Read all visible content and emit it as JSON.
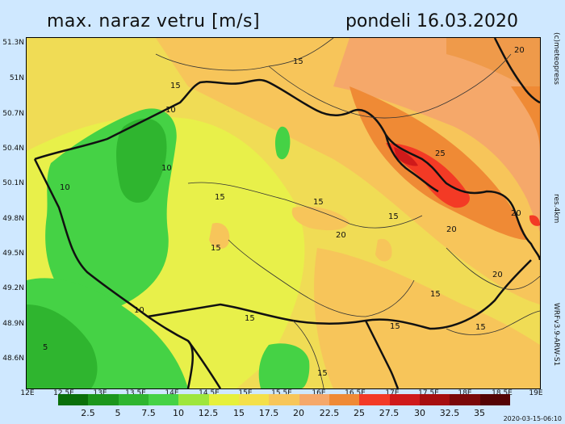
{
  "header": {
    "title": "max. naraz vetru [m/s]",
    "date": "pondeli 16.03.2020"
  },
  "map": {
    "lat_labels": [
      "51.3N",
      "51N",
      "50.7N",
      "50.4N",
      "50.1N",
      "49.8N",
      "49.5N",
      "49.2N",
      "48.9N",
      "48.6N"
    ],
    "lon_labels": [
      "12E",
      "12.5E",
      "13E",
      "13.5E",
      "14E",
      "14.5E",
      "15E",
      "15.5E",
      "16E",
      "16.5E",
      "17E",
      "17.5E",
      "18E",
      "18.5E",
      "19E"
    ],
    "contour_labels": [
      "15",
      "15",
      "10",
      "10",
      "10",
      "15",
      "15",
      "15",
      "15",
      "20",
      "20",
      "25",
      "20",
      "15",
      "15",
      "10",
      "15",
      "15",
      "15",
      "5",
      "20",
      "20"
    ]
  },
  "side": {
    "copyright": "(c)meteopress",
    "resolution": "res.4km",
    "model": "WRFv3.9-ARW-S1"
  },
  "legend": {
    "colors": [
      "#0a6f0a",
      "#1c961c",
      "#2fb52f",
      "#45d245",
      "#9ee63c",
      "#e6f03c",
      "#f4e04a",
      "#f7c65a",
      "#f5a86a",
      "#ef8a35",
      "#f33a25",
      "#cf1a1a",
      "#a60f0f",
      "#7a0808",
      "#540404"
    ],
    "ticks": [
      "2.5",
      "5",
      "7.5",
      "10",
      "12.5",
      "15",
      "17.5",
      "20",
      "22.5",
      "25",
      "27.5",
      "30",
      "32.5",
      "35"
    ]
  },
  "footer": {
    "timestamp": "2020-03-15-06:10"
  }
}
